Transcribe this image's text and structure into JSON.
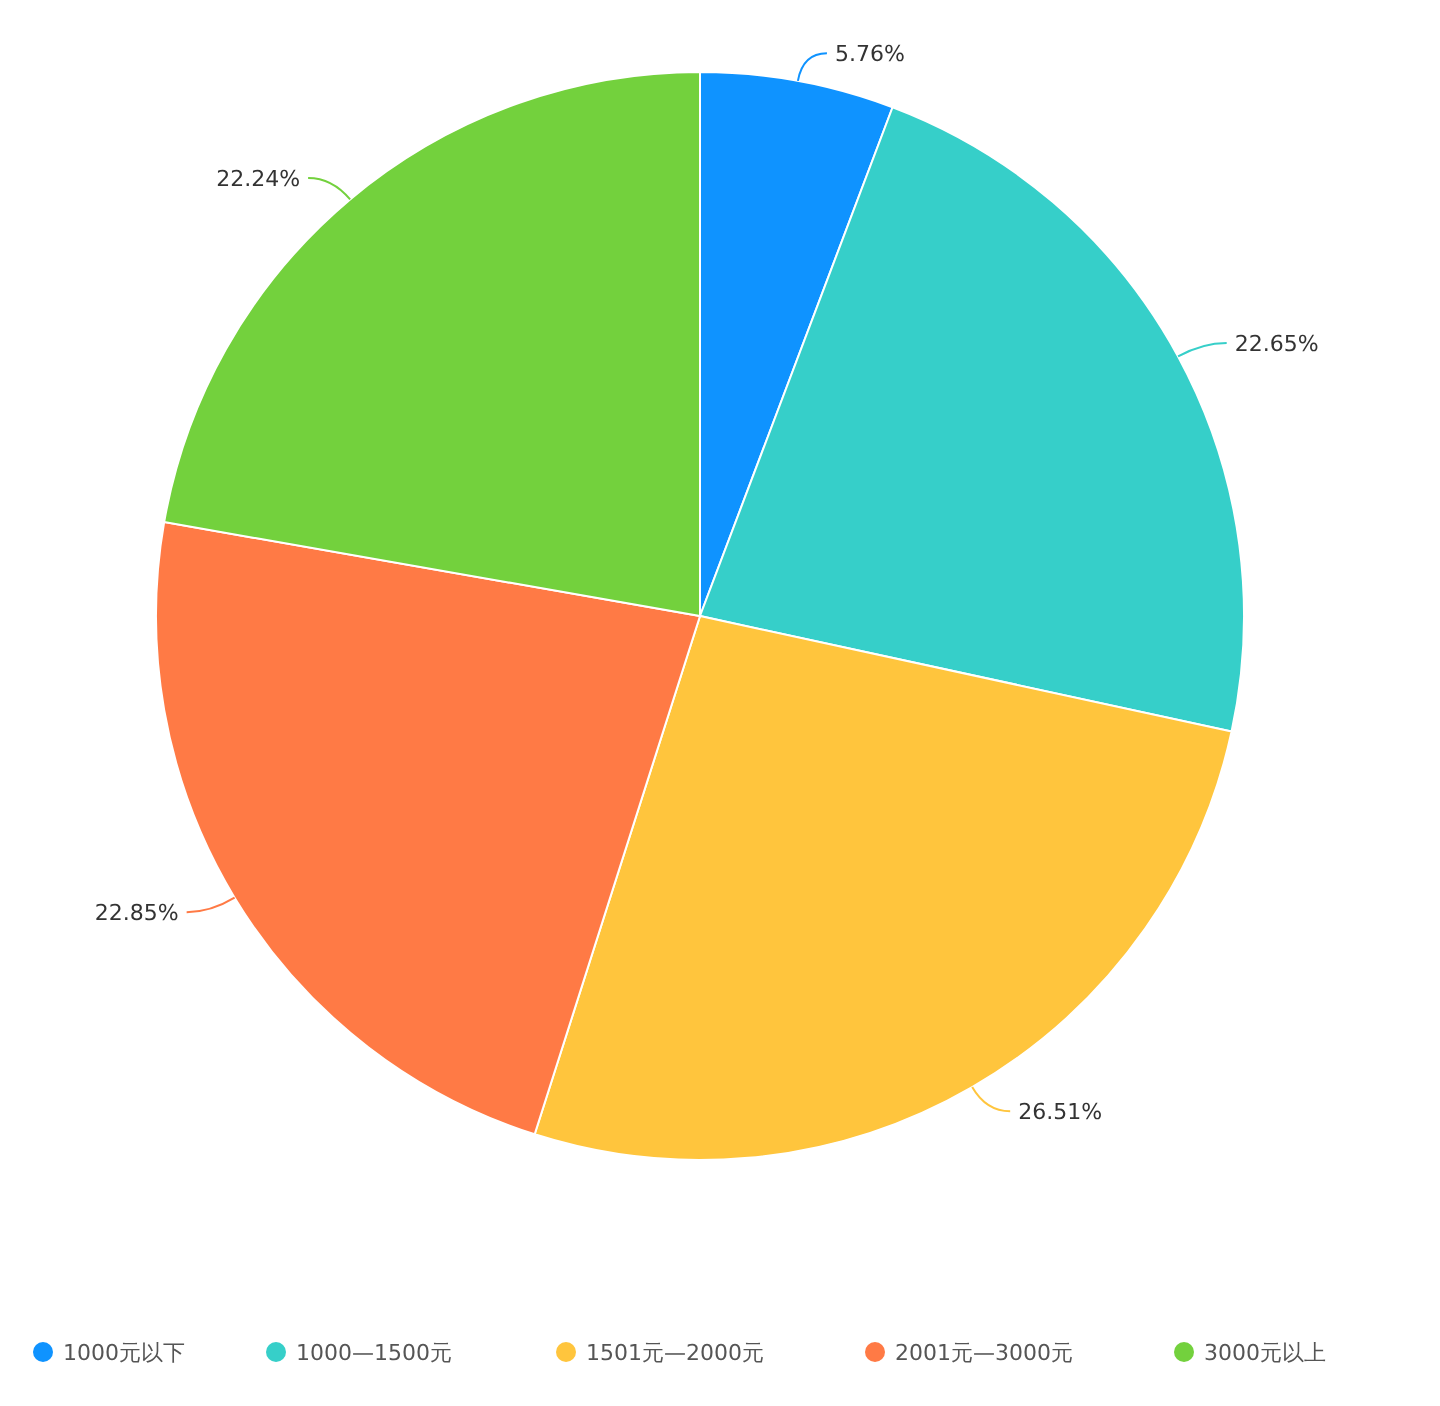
{
  "chart_data": {
    "type": "pie",
    "categories": [
      "1000元以下",
      "1000—1500元",
      "1501元—2000元",
      "2001元—3000元",
      "3000元以上"
    ],
    "values": [
      5.76,
      22.65,
      26.51,
      22.85,
      22.24
    ],
    "value_labels": [
      "5.76%",
      "22.65%",
      "26.51%",
      "22.85%",
      "22.24%"
    ],
    "colors": [
      "#0f93ff",
      "#36cfc9",
      "#ffc53d",
      "#ff7a45",
      "#73d13d"
    ],
    "legend": "bottom"
  }
}
